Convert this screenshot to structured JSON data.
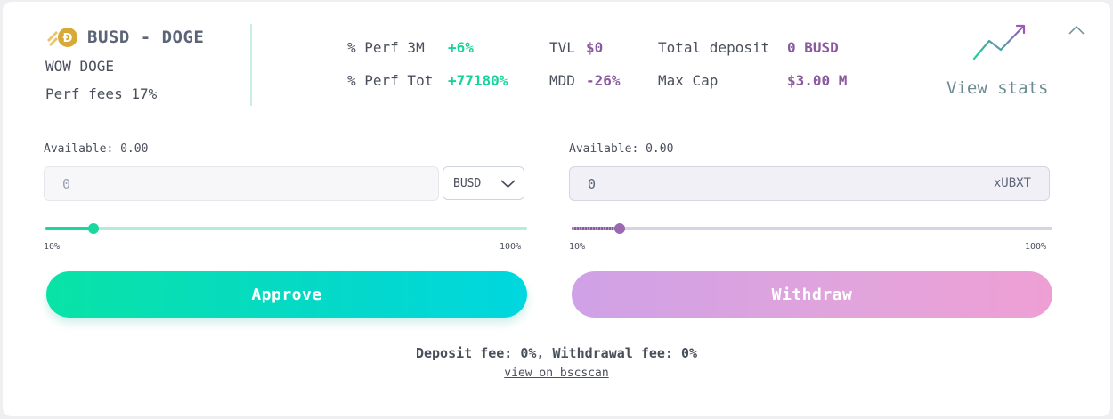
{
  "header": {
    "pair_title": "BUSD - DOGE",
    "subtitle": "WOW DOGE",
    "perf_fees": "Perf fees 17%",
    "view_stats": "View stats"
  },
  "stats": {
    "perf_3m_label": "% Perf 3M",
    "perf_3m_value": "+6%",
    "perf_tot_label": "% Perf Tot",
    "perf_tot_value": "+77180%",
    "tvl_label": "TVL",
    "tvl_value": "$0",
    "mdd_label": "MDD",
    "mdd_value": "-26%",
    "total_deposit_label": "Total deposit",
    "total_deposit_value": "0 BUSD",
    "max_cap_label": "Max Cap",
    "max_cap_value": "$3.00 M"
  },
  "deposit": {
    "available": "Available: 0.00",
    "input_placeholder": "0",
    "token": "BUSD",
    "slider_value_pct": 10,
    "slider_min_label": "10%",
    "slider_max_label": "100%",
    "button_label": "Approve"
  },
  "withdraw": {
    "available": "Available: 0.00",
    "input_value": "0",
    "token": "xUBXT",
    "slider_value_pct": 10,
    "slider_min_label": "10%",
    "slider_max_label": "100%",
    "button_label": "Withdraw"
  },
  "footer": {
    "fees": "Deposit fee: 0%, Withdrawal fee: 0%",
    "link": "view on bscscan"
  },
  "colors": {
    "green": "#17d39a",
    "purple": "#8a5a9e",
    "doge_gold": "#d8a935"
  },
  "icons": {
    "coin": "doge-coin-icon",
    "stats": "trend-up-icon",
    "collapse": "chevron-up-icon",
    "dropdown": "chevron-down-icon"
  }
}
